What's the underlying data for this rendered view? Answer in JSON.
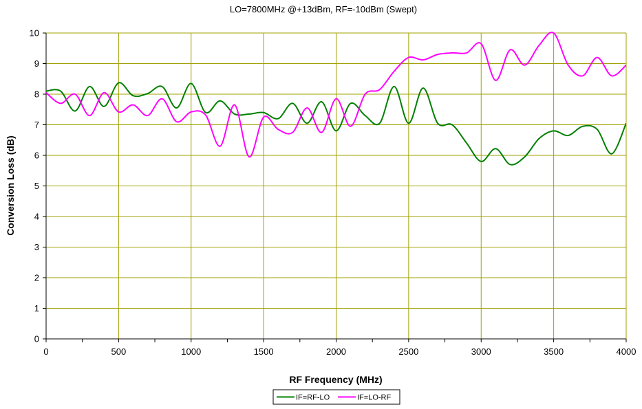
{
  "chart_data": {
    "type": "line",
    "title": "LO=7800MHz @+13dBm, RF=-10dBm (Swept)",
    "xlabel": "RF Frequency (MHz)",
    "ylabel": "Conversion Loss (dB)",
    "xlim": [
      0,
      4000
    ],
    "ylim": [
      0,
      10
    ],
    "xticks": [
      0,
      500,
      1000,
      1500,
      2000,
      2500,
      3000,
      3500,
      4000
    ],
    "yticks": [
      0,
      1,
      2,
      3,
      4,
      5,
      6,
      7,
      8,
      9,
      10
    ],
    "grid": true,
    "legend_position": "bottom-center",
    "series": [
      {
        "name": "IF=RF-LO",
        "color": "#008000",
        "x": [
          0,
          100,
          200,
          300,
          400,
          500,
          600,
          700,
          800,
          900,
          1000,
          1100,
          1200,
          1300,
          1400,
          1500,
          1600,
          1700,
          1800,
          1900,
          2000,
          2100,
          2200,
          2300,
          2400,
          2500,
          2600,
          2700,
          2800,
          2900,
          3000,
          3100,
          3200,
          3300,
          3400,
          3500,
          3600,
          3700,
          3800,
          3900,
          4000
        ],
        "values": [
          8.1,
          8.1,
          7.45,
          8.25,
          7.6,
          8.37,
          7.95,
          8.02,
          8.25,
          7.55,
          8.35,
          7.4,
          7.78,
          7.35,
          7.35,
          7.4,
          7.2,
          7.7,
          7.05,
          7.75,
          6.8,
          7.7,
          7.3,
          7.05,
          8.25,
          7.05,
          8.2,
          7.05,
          7.0,
          6.4,
          5.8,
          6.22,
          5.7,
          5.95,
          6.55,
          6.8,
          6.65,
          6.95,
          6.85,
          6.05,
          7.05
        ]
      },
      {
        "name": "IF=LO-RF",
        "color": "#ff00ff",
        "x": [
          0,
          100,
          200,
          300,
          400,
          500,
          600,
          700,
          800,
          900,
          1000,
          1100,
          1200,
          1300,
          1400,
          1500,
          1600,
          1700,
          1800,
          1900,
          2000,
          2100,
          2200,
          2300,
          2400,
          2500,
          2600,
          2700,
          2800,
          2900,
          3000,
          3100,
          3200,
          3300,
          3400,
          3500,
          3600,
          3700,
          3800,
          3900,
          4000
        ],
        "values": [
          8.05,
          7.7,
          8.0,
          7.3,
          8.05,
          7.42,
          7.65,
          7.3,
          7.85,
          7.1,
          7.42,
          7.32,
          6.3,
          7.65,
          5.95,
          7.25,
          6.85,
          6.75,
          7.55,
          6.75,
          7.85,
          6.95,
          8.0,
          8.15,
          8.75,
          9.2,
          9.12,
          9.3,
          9.35,
          9.35,
          9.65,
          8.45,
          9.45,
          8.95,
          9.6,
          10.0,
          8.95,
          8.6,
          9.2,
          8.6,
          8.95
        ]
      }
    ]
  }
}
